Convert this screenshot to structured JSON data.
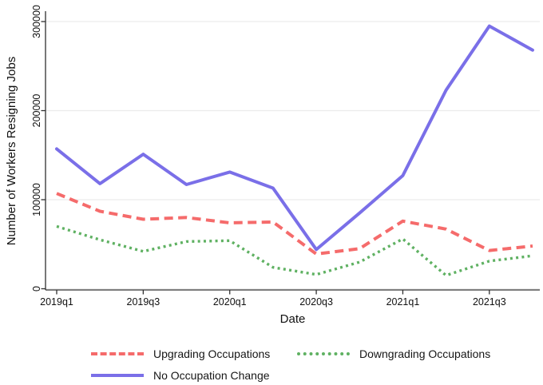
{
  "chart_data": {
    "type": "line",
    "title": "",
    "xlabel": "Date",
    "ylabel": "Number of Workers Resigning Jobs",
    "categories": [
      "2019q1",
      "2019q2",
      "2019q3",
      "2019q4",
      "2020q1",
      "2020q2",
      "2020q3",
      "2020q4",
      "2021q1",
      "2021q2",
      "2021q3",
      "2021q4"
    ],
    "x_tick_labels": [
      "2019q1",
      "2019q3",
      "2020q1",
      "2020q3",
      "2021q1",
      "2021q3"
    ],
    "y_ticks": [
      0,
      100000,
      200000,
      300000
    ],
    "y_tick_labels": [
      "0",
      "100000",
      "200000",
      "300000"
    ],
    "ylim": [
      0,
      310000
    ],
    "grid": "horizontal-light",
    "legend_position": "bottom",
    "series": [
      {
        "name": "Upgrading Occupations",
        "style": "dashed",
        "color": "#f56b6b",
        "values": [
          107000,
          87000,
          78000,
          80000,
          74000,
          75000,
          39000,
          45000,
          76000,
          67000,
          43000,
          48000
        ]
      },
      {
        "name": "Downgrading Occupations",
        "style": "dotted",
        "color": "#5fb162",
        "values": [
          70000,
          55000,
          42000,
          53000,
          54000,
          24000,
          16000,
          30000,
          56000,
          15000,
          31000,
          37000
        ]
      },
      {
        "name": "No Occupation Change",
        "style": "solid",
        "color": "#7a6fe8",
        "values": [
          157000,
          118000,
          151000,
          117000,
          131000,
          113000,
          44000,
          85000,
          127000,
          223000,
          295000,
          268000
        ]
      }
    ]
  },
  "colors": {
    "axis": "#303030",
    "grid": "#ececec",
    "text": "#111111",
    "background": "#ffffff"
  }
}
